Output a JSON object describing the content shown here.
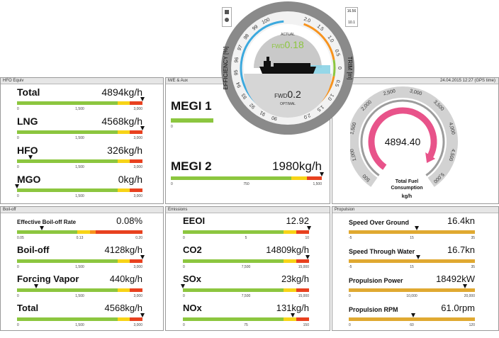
{
  "panels": {
    "hfo": {
      "title": "HFO Equiv"
    },
    "me": {
      "title": "M/E & Aux"
    },
    "fuel": {
      "date": "24.04.2015  12:27 (GPS time)"
    },
    "boiloff": {
      "title": "Boil-off"
    },
    "emissions": {
      "title": "Emissions"
    },
    "propulsion": {
      "title": "Propulsion"
    }
  },
  "hfo_metrics": [
    {
      "label": "Total",
      "value": "4894",
      "unit": "kg/h",
      "ticks": [
        "0",
        "1,500",
        "3,000"
      ],
      "marker": 1.0
    },
    {
      "label": "LNG",
      "value": "4568",
      "unit": "kg/h",
      "ticks": [
        "0",
        "1,500",
        "3,000"
      ],
      "marker": 1.0
    },
    {
      "label": "HFO",
      "value": "326",
      "unit": "kg/h",
      "ticks": [
        "0",
        "1,500",
        "3,000"
      ],
      "marker": 0.11
    },
    {
      "label": "MGO",
      "value": "0",
      "unit": "kg/h",
      "ticks": [
        "0",
        "1,500",
        "3,000"
      ],
      "marker": 0.0
    }
  ],
  "megi1": {
    "label": "MEGI 1",
    "tick0": "0"
  },
  "megi2": {
    "label": "MEGI 2",
    "value": "1980",
    "unit": "kg/h",
    "ticks": [
      "0",
      "750",
      "1,500"
    ],
    "marker": 1.0
  },
  "boiloff_metrics": [
    {
      "label": "Effective Boil-off Rate",
      "value": "0.08",
      "unit": "%",
      "ticks": [
        "0.05",
        "0.13",
        "0.20"
      ],
      "marker": 0.2
    },
    {
      "label": "Boil-off",
      "value": "4128",
      "unit": "kg/h",
      "ticks": [
        "0",
        "1,500",
        "3,000"
      ],
      "marker": 1.0
    },
    {
      "label": "Forcing Vapor",
      "value": "440",
      "unit": "kg/h",
      "ticks": [
        "0",
        "1,500",
        "3,000"
      ],
      "marker": 0.15
    },
    {
      "label": "Total",
      "value": "4568",
      "unit": "kg/h",
      "ticks": [
        "0",
        "1,500",
        "3,000"
      ],
      "marker": 1.0
    }
  ],
  "emission_metrics": [
    {
      "label": "EEOI",
      "value": "12.92",
      "unit": "",
      "ticks": [
        "0",
        "5",
        "10"
      ],
      "marker": 1.0
    },
    {
      "label": "CO2",
      "value": "14809",
      "unit": "kg/h",
      "ticks": [
        "0",
        "7,500",
        "15,000"
      ],
      "marker": 0.99
    },
    {
      "label": "SOx",
      "value": "23",
      "unit": "kg/h",
      "ticks": [
        "0",
        "7,500",
        "15,000"
      ],
      "marker": 0.0
    },
    {
      "label": "NOx",
      "value": "131",
      "unit": "kg/h",
      "ticks": [
        "0",
        "75",
        "150"
      ],
      "marker": 0.87
    }
  ],
  "propulsion_metrics": [
    {
      "label": "Speed Over Ground",
      "value": "16.4",
      "unit": "kn",
      "ticks": [
        "-5",
        "15",
        "35"
      ],
      "marker": 0.54
    },
    {
      "label": "Speed Through Water",
      "value": "16.7",
      "unit": "kn",
      "ticks": [
        "-5",
        "15",
        "35"
      ],
      "marker": 0.55
    },
    {
      "label": "Propulsion Power",
      "value": "18492",
      "unit": "kW",
      "ticks": [
        "0",
        "10,000",
        "20,000"
      ],
      "marker": 0.92
    },
    {
      "label": "Propulsion RPM",
      "value": "61.0",
      "unit": "rpm",
      "ticks": [
        "0",
        "60",
        "120"
      ],
      "marker": 0.51
    }
  ],
  "trim_gauge": {
    "efficiency_label": "EFFICIENCY [%]",
    "trim_label": "TRIM [m]",
    "actual_label": "ACTUAL",
    "optimal_label": "OPTIMAL",
    "actual_prefix": "FWD",
    "actual_value": "0.18",
    "optimal_prefix": "FWD",
    "optimal_value": "0.2",
    "efficiency_ticks": [
      "100",
      "99",
      "98",
      "97",
      "96",
      "95",
      "94",
      "93",
      "92",
      "91",
      "90"
    ],
    "trim_ticks": [
      "2.0",
      "1.5",
      "1.0",
      "0.5",
      "0",
      "0.5",
      "1.0",
      "1.5",
      "2.0"
    ],
    "left_box": "",
    "right_box_top": "16.56",
    "right_box_bottom": "10.1"
  },
  "fuel_gauge": {
    "value": "4894.40",
    "label1": "Total Fuel",
    "label2": "Consumption",
    "unit": "kg/h",
    "ticks": [
      "500",
      "1,000",
      "1,500",
      "2,000",
      "2,500",
      "3,000",
      "3,500",
      "4,000",
      "4,500",
      "5,000"
    ]
  },
  "colors": {
    "green": "#8cc63f",
    "yellow": "#f7d417",
    "orange": "#f7931e",
    "red": "#e8411f",
    "gold": "#e0a931",
    "pink": "#e8538a",
    "blue": "#3ca9de",
    "gauge_grey": "#777777"
  }
}
